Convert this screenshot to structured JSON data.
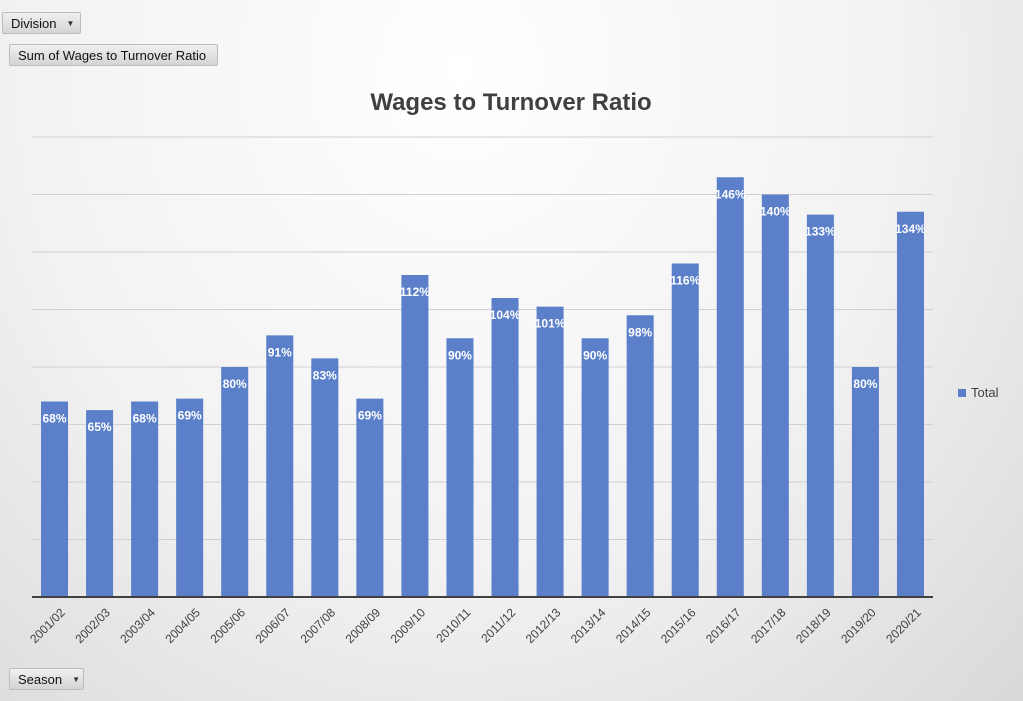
{
  "pivot": {
    "filter_label": "Division",
    "value_field_label": "Sum of Wages to Turnover Ratio",
    "axis_field_label": "Season",
    "dropdown_icon": "chevron-down-icon"
  },
  "legend": {
    "label": "Total",
    "position": "right",
    "color": "#5b80c9"
  },
  "chart_data": {
    "type": "bar",
    "title": "Wages to Turnover Ratio",
    "xlabel": "",
    "ylabel": "",
    "ylim": [
      0,
      1.6
    ],
    "grid": true,
    "value_axis_labels_shown": false,
    "bar_color": "#5b80c9",
    "categories": [
      "2001/02",
      "2002/03",
      "2003/04",
      "2004/05",
      "2005/06",
      "2006/07",
      "2007/08",
      "2008/09",
      "2009/10",
      "2010/11",
      "2011/12",
      "2012/13",
      "2013/14",
      "2014/15",
      "2015/16",
      "2016/17",
      "2017/18",
      "2018/19",
      "2019/20",
      "2020/21"
    ],
    "series": [
      {
        "name": "Total",
        "values": [
          0.68,
          0.65,
          0.68,
          0.69,
          0.8,
          0.91,
          0.83,
          0.69,
          1.12,
          0.9,
          1.04,
          1.01,
          0.9,
          0.98,
          1.16,
          1.46,
          1.4,
          1.33,
          0.8,
          1.34
        ],
        "labels": [
          "68%",
          "65%",
          "68%",
          "69%",
          "80%",
          "91%",
          "83%",
          "69%",
          "112%",
          "90%",
          "104%",
          "101%",
          "90%",
          "98%",
          "116%",
          "146%",
          "140%",
          "133%",
          "80%",
          "134%"
        ]
      }
    ]
  }
}
